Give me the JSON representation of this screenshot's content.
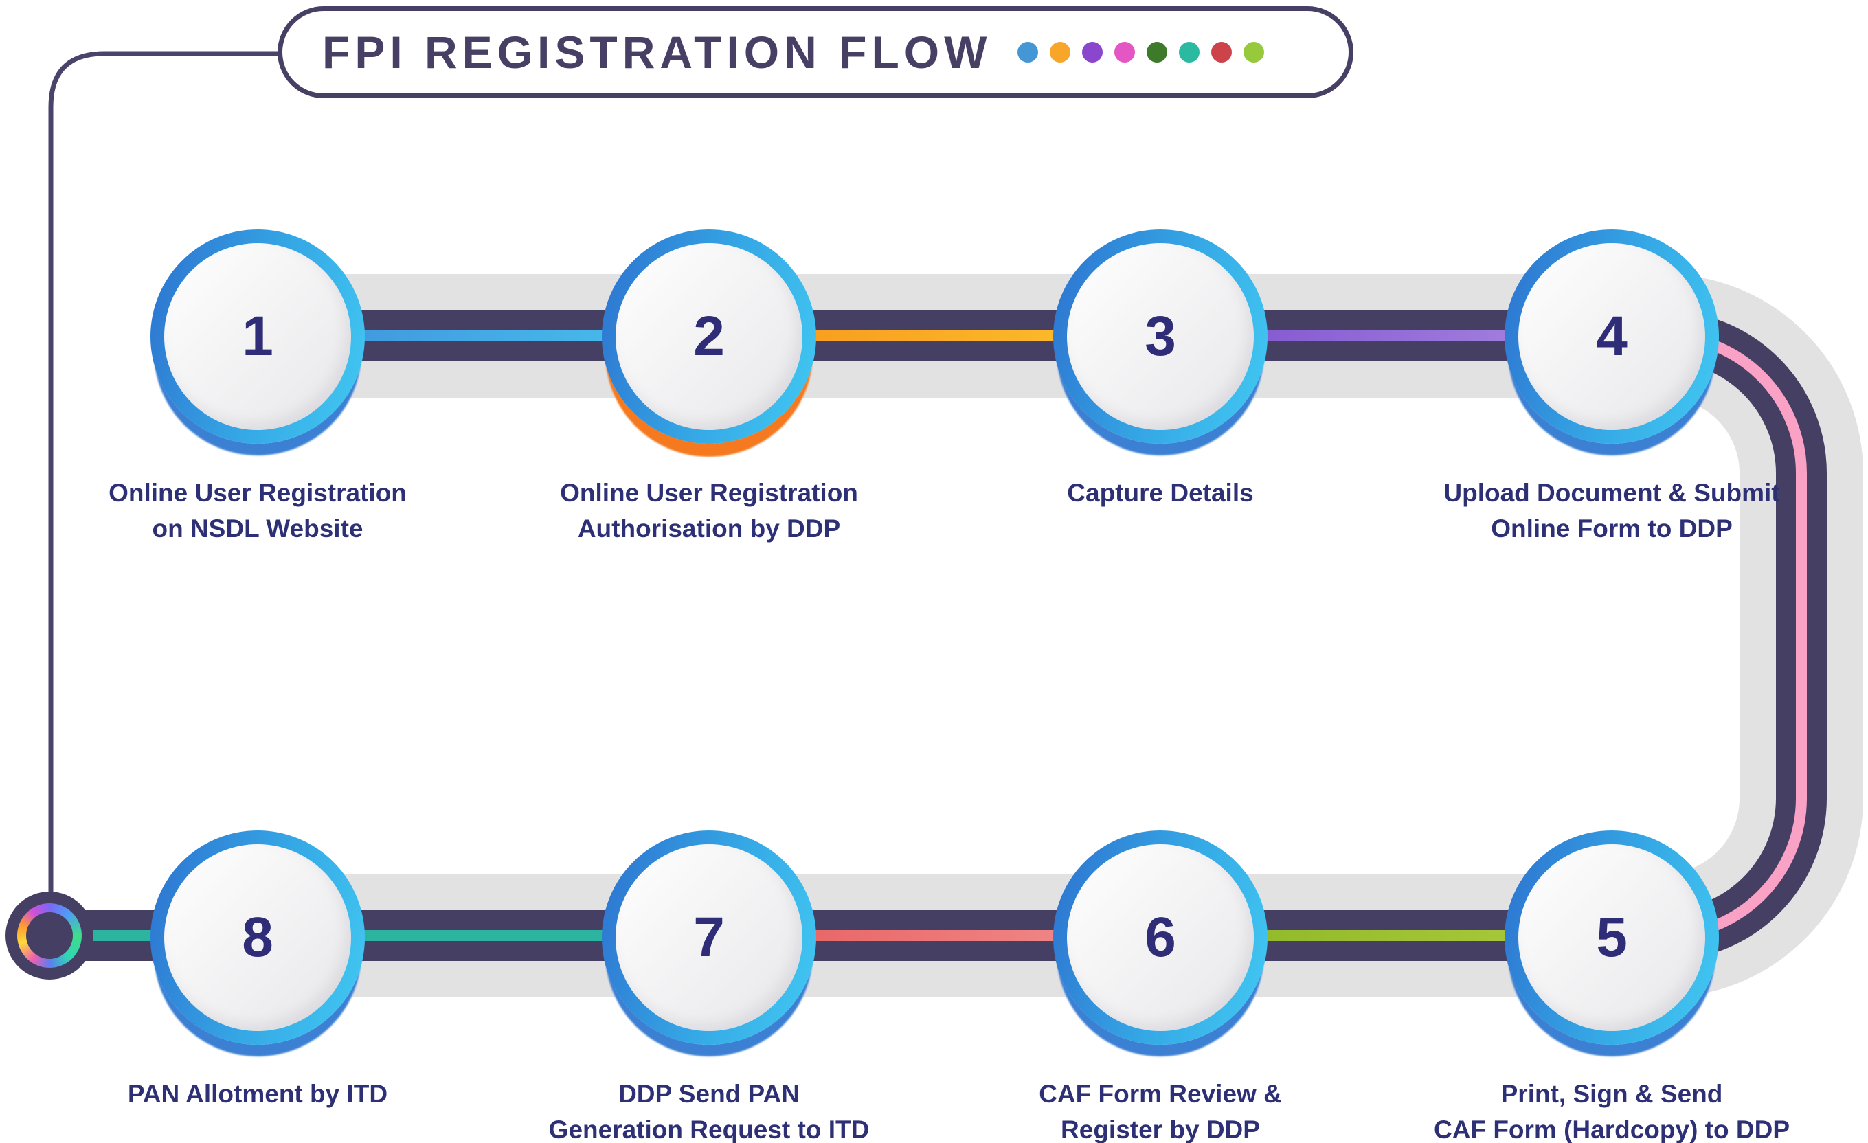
{
  "title": {
    "text": "FPI REGISTRATION FLOW",
    "dots": [
      "#4596d4",
      "#f8a62a",
      "#8a46cc",
      "#e356c3",
      "#3d7b2b",
      "#2cb9a2",
      "#cc4449",
      "#97c93d"
    ]
  },
  "steps": [
    {
      "number": "1",
      "line1": "Online User Registration",
      "line2": "on NSDL Website"
    },
    {
      "number": "2",
      "line1": "Online User Registration",
      "line2": "Authorisation by DDP"
    },
    {
      "number": "3",
      "line1": "Capture Details",
      "line2": ""
    },
    {
      "number": "4",
      "line1": "Upload Document & Submit",
      "line2": "Online Form to DDP"
    },
    {
      "number": "5",
      "line1": "Print, Sign & Send",
      "line2": "CAF Form (Hardcopy) to DDP"
    },
    {
      "number": "6",
      "line1": "CAF Form Review &",
      "line2": "Register by DDP"
    },
    {
      "number": "7",
      "line1": "DDP Send PAN",
      "line2": "Generation Request to ITD"
    },
    {
      "number": "8",
      "line1": "PAN Allotment by ITD",
      "line2": ""
    }
  ],
  "colors": {
    "road_gray": "#e2e2e3",
    "road_navy": "#453f63",
    "segment_1_2_start": "#3f8edb",
    "segment_1_2_end": "#49c4ef",
    "segment_2_3_start": "#f6941e",
    "segment_2_3_end": "#fdc32d",
    "segment_3_4_start": "#7c4ecd",
    "segment_3_4_end": "#a98ae2",
    "segment_4_5_pink": "#f9a2c5",
    "segment_5_6_start": "#8ab526",
    "segment_5_6_end": "#adcc3e",
    "segment_6_7_start": "#e65c5c",
    "segment_6_7_end": "#f29090",
    "segment_7_8_teal": "#2cb4a1",
    "circle_ring_dark": "#2e79d2",
    "circle_ring_light": "#41c6f1",
    "circle_shadow_blue": "#3c80d4",
    "circle_shadow_orange": "#f4791f",
    "number_text": "#2f2d77",
    "label_text": "#2e3076",
    "pill_border": "#474064",
    "connector_line": "#49446a"
  }
}
